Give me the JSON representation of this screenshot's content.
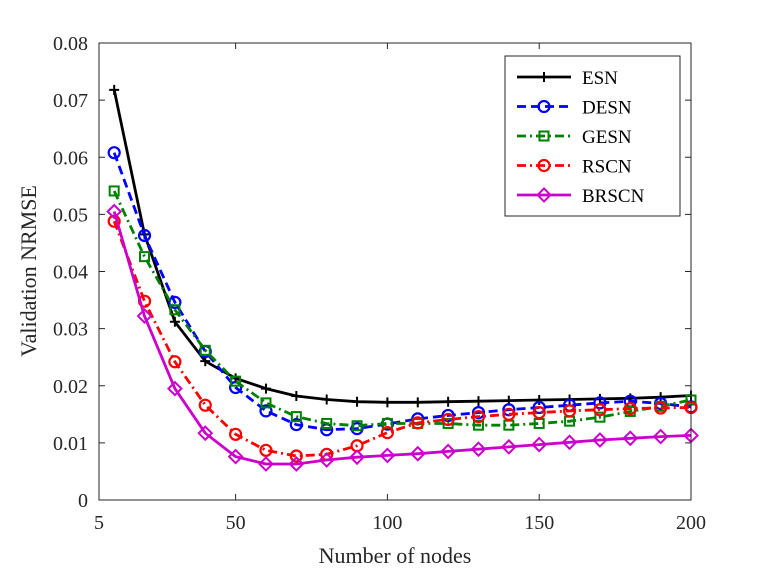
{
  "chart_data": {
    "type": "line",
    "title": "",
    "xlabel": "Number of nodes",
    "ylabel": "Validation NRMSE",
    "xlim": [
      5,
      200
    ],
    "ylim": [
      0,
      0.08
    ],
    "xticks": [
      5,
      50,
      100,
      150,
      200
    ],
    "xtick_labels": [
      "5",
      "50",
      "100",
      "150",
      "200"
    ],
    "yticks": [
      0,
      0.01,
      0.02,
      0.03,
      0.04,
      0.05,
      0.06,
      0.07,
      0.08
    ],
    "ytick_labels": [
      "0",
      "0.01",
      "0.02",
      "0.03",
      "0.04",
      "0.05",
      "0.06",
      "0.07",
      "0.08"
    ],
    "grid": false,
    "legend_position": "top-right",
    "x": [
      10,
      20,
      30,
      40,
      50,
      60,
      70,
      80,
      90,
      100,
      110,
      120,
      130,
      140,
      150,
      160,
      170,
      180,
      190,
      200
    ],
    "series": [
      {
        "name": "ESN",
        "color": "#000000",
        "linestyle": "solid",
        "marker": "plus",
        "values": [
          0.0718,
          0.0465,
          0.0312,
          0.0243,
          0.0213,
          0.0195,
          0.0182,
          0.0176,
          0.0172,
          0.0171,
          0.0171,
          0.0172,
          0.0173,
          0.0174,
          0.0175,
          0.0176,
          0.0177,
          0.0178,
          0.018,
          0.0183
        ]
      },
      {
        "name": "DESN",
        "color": "#0000ff",
        "linestyle": "dashed",
        "marker": "circle",
        "values": [
          0.0608,
          0.0463,
          0.0346,
          0.026,
          0.0197,
          0.0156,
          0.0132,
          0.0123,
          0.0125,
          0.0133,
          0.0142,
          0.0148,
          0.0153,
          0.0158,
          0.0162,
          0.0166,
          0.017,
          0.0173,
          0.0169,
          0.0163
        ]
      },
      {
        "name": "GESN",
        "color": "#008000",
        "linestyle": "dashdot",
        "marker": "square",
        "values": [
          0.0541,
          0.0426,
          0.0333,
          0.0262,
          0.0208,
          0.017,
          0.0146,
          0.0134,
          0.013,
          0.0134,
          0.0134,
          0.0134,
          0.0131,
          0.0131,
          0.0134,
          0.0138,
          0.0145,
          0.0155,
          0.0164,
          0.0175
        ]
      },
      {
        "name": "RSCN",
        "color": "#ff0000",
        "linestyle": "dashdot",
        "marker": "circle",
        "values": [
          0.0488,
          0.0348,
          0.0242,
          0.0166,
          0.0115,
          0.0087,
          0.0077,
          0.008,
          0.0095,
          0.0118,
          0.0135,
          0.0141,
          0.0146,
          0.015,
          0.0153,
          0.0156,
          0.0158,
          0.016,
          0.0161,
          0.0162
        ]
      },
      {
        "name": "BRSCN",
        "color": "#cc00cc",
        "linestyle": "solid",
        "marker": "diamond",
        "values": [
          0.0505,
          0.0322,
          0.0195,
          0.0117,
          0.0076,
          0.0063,
          0.0063,
          0.007,
          0.0075,
          0.0078,
          0.0081,
          0.0085,
          0.0089,
          0.0093,
          0.0097,
          0.0101,
          0.0105,
          0.0108,
          0.0111,
          0.0113
        ]
      }
    ]
  }
}
